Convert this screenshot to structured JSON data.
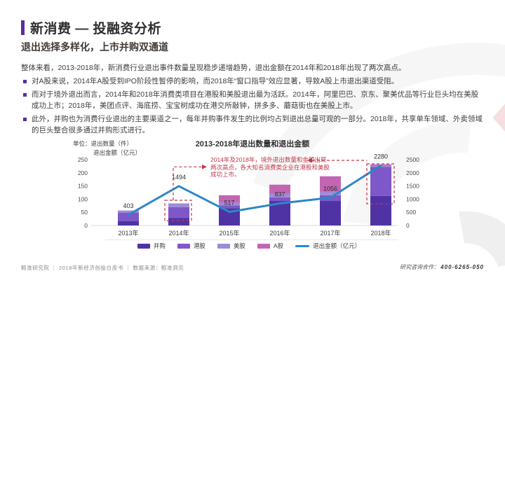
{
  "page": {
    "title": "新消费 — 投融资分析",
    "subtitle": "退出选择多样化，上市并购双通道"
  },
  "body": {
    "intro": "整体来看，2013-2018年，新消费行业退出事件数量呈现稳步递增趋势，退出金额在2014年和2018年出现了两次高点。",
    "bullets": [
      "对A股来说，2014年A股受到IPO阶段性暂停的影响，而2018年“窗口指导”效应显著，导致A股上市退出渠道受阻。",
      "而对于境外退出而言，2014年和2018年消费类项目在港股和美股退出最为活跃。2014年，阿里巴巴、京东、聚美优品等行业巨头均在美股成功上市；2018年，美团点评、海底捞、宝宝树成功在港交所敲钟，拼多多、蘑菇街也在美股上市。",
      "此外，并购也为消费行业退出的主要渠道之一，每年并购事件发生的比例均占到退出总量可观的一部分。2018年，共享单车领域、外卖领域的巨头整合很多通过并购形式进行。"
    ]
  },
  "chart_data": {
    "type": "stacked-bar+line",
    "title": "2013-2018年退出数量和退出金额",
    "unit_label": [
      "单位：退出数量（件）",
      "退出金额（亿元）"
    ],
    "categories": [
      "2013年",
      "2014年",
      "2015年",
      "2016年",
      "2017年",
      "2018年"
    ],
    "series": [
      {
        "key": "merger",
        "name": "并购",
        "color": "#4f33a5",
        "values": [
          16,
          28,
          66,
          93,
          93,
          112
        ]
      },
      {
        "key": "hk",
        "name": "港股",
        "color": "#7e57c8",
        "values": [
          33,
          42,
          10,
          14,
          22,
          110
        ]
      },
      {
        "key": "us",
        "name": "美股",
        "color": "#9f8bd8",
        "values": [
          8,
          14,
          12,
          13,
          13,
          5
        ]
      },
      {
        "key": "a",
        "name": "A股",
        "color": "#c465b4",
        "values": [
          0,
          0,
          27,
          35,
          59,
          5
        ]
      }
    ],
    "line": {
      "name": "退出金额（亿元）",
      "color": "#2d87c8",
      "values": [
        403,
        1494,
        517,
        837,
        1056,
        2280
      ]
    },
    "left_axis": {
      "min": 0,
      "max": 250,
      "step": 50,
      "ticks": [
        0,
        50,
        100,
        150,
        200,
        250
      ],
      "label": "退出数量（件）"
    },
    "right_axis": {
      "min": 0,
      "max": 2500,
      "step": 500,
      "ticks": [
        0,
        500,
        1000,
        1500,
        2000,
        2500
      ],
      "label": "退出金额（亿元）"
    },
    "annotation": "2014年及2018年，境外退出数量和金额出现两次高点，各大知名消费类企业在港股和美股成功上市。",
    "legend_position": "bottom",
    "grid": "off"
  },
  "colors": {
    "accent_purple": "#5b2da0",
    "annotation_red": "#c0394b"
  },
  "footer": {
    "left": "鲸准研究院 ｜ 2018年新经济创投白皮书 ｜ 数据来源：鲸准洞见",
    "right_label": "研究咨询合作：",
    "right_phone": "400-6265-050"
  }
}
